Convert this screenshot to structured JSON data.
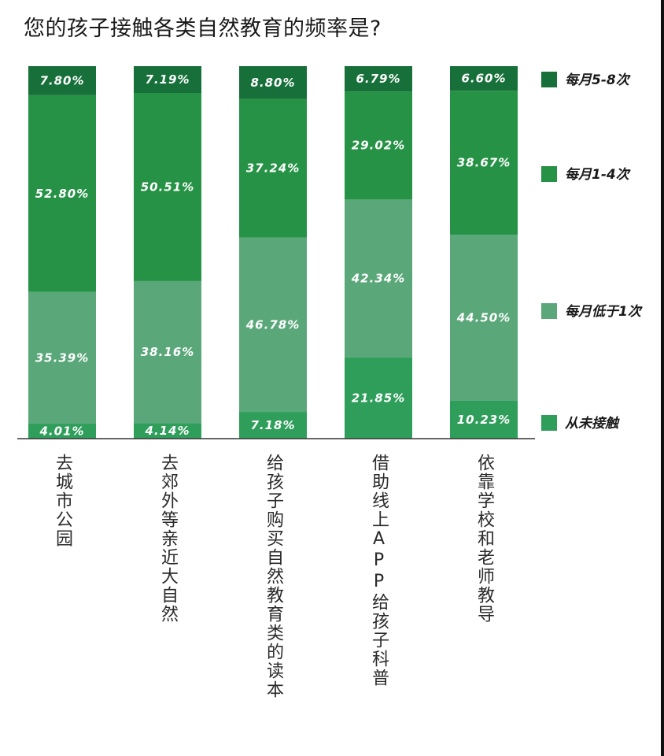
{
  "title": "您的孩子接触各类自然教育的频率是?",
  "chart_data": {
    "type": "bar",
    "stacked": true,
    "title": "您的孩子接触各类自然教育的频率是?",
    "categories": [
      "去城市公园",
      "去郊外等亲近大自然",
      "给孩子购买自然教育类的读本",
      "借助线上APP给孩子科普",
      "依靠学校和老师教导"
    ],
    "series": [
      {
        "name": "从未接触",
        "color": "#2f9e5b",
        "values": [
          4.01,
          4.14,
          7.18,
          21.85,
          10.23
        ],
        "labels": [
          "4.01%",
          "4.14%",
          "7.18%",
          "21.85%",
          "10.23%"
        ]
      },
      {
        "name": "每月低于1次",
        "color": "#5aa77a",
        "values": [
          35.39,
          38.16,
          46.78,
          42.34,
          44.5
        ],
        "labels": [
          "35.39%",
          "38.16%",
          "46.78%",
          "42.34%",
          "44.50%"
        ]
      },
      {
        "name": "每月1-4次",
        "color": "#269246",
        "values": [
          52.8,
          50.51,
          37.24,
          29.02,
          38.67
        ],
        "labels": [
          "52.80%",
          "50.51%",
          "37.24%",
          "29.02%",
          "38.67%"
        ]
      },
      {
        "name": "每月5-8次",
        "color": "#17703a",
        "values": [
          7.8,
          7.19,
          8.8,
          6.79,
          6.6
        ],
        "labels": [
          "7.80%",
          "7.19%",
          "8.80%",
          "6.79%",
          "6.60%"
        ]
      }
    ],
    "ylim": [
      0,
      100
    ],
    "grid": false,
    "legend_position": "right"
  },
  "legend_order": [
    "每月5-8次",
    "每月1-4次",
    "每月低于1次",
    "从未接触"
  ]
}
